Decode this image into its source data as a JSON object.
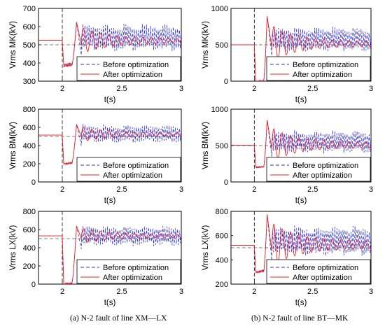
{
  "chart_data": [
    {
      "type": "line",
      "ylabel": "Vrms MK(kV)",
      "xlabel": "t(s)",
      "xlim": [
        1.8,
        3.0
      ],
      "ylim": [
        300,
        700
      ],
      "xticks": [
        "2",
        "2.5",
        "3"
      ],
      "yticks": [
        "300",
        "400",
        "500",
        "600",
        "700"
      ],
      "dashed_reference": {
        "x": 2.0,
        "y": 500
      },
      "legend": "lower-right",
      "pre_fault_kv": 525,
      "dip_kv": 385,
      "peak_kv": 625,
      "peak_t": 2.12,
      "series": [
        {
          "name": "Before optimization",
          "color": "#3333dd",
          "style": "dashed",
          "steady_min": 460,
          "steady_max": 620
        },
        {
          "name": "After optimization",
          "color": "#ee2222",
          "style": "solid",
          "steady_min": 505,
          "steady_max": 540
        }
      ]
    },
    {
      "type": "line",
      "ylabel": "Vrms MK(kV)",
      "xlabel": "t(s)",
      "xlim": [
        1.8,
        3.0
      ],
      "ylim": [
        0,
        1000
      ],
      "xticks": [
        "2",
        "2.5",
        "3"
      ],
      "yticks": [
        "0",
        "500",
        "1000"
      ],
      "dashed_reference": {
        "x": 2.0,
        "y": 500
      },
      "legend": "lower-right",
      "pre_fault_kv": 500,
      "dip_kv": 0,
      "peak_kv": 890,
      "peak_t": 2.11,
      "series": [
        {
          "name": "Before optimization",
          "color": "#3333dd",
          "style": "dashed",
          "steady_min": 390,
          "steady_max": 760
        },
        {
          "name": "After optimization",
          "color": "#ee2222",
          "style": "solid",
          "steady_min": 470,
          "steady_max": 560
        }
      ]
    },
    {
      "type": "line",
      "ylabel": "Vrms BM(kV)",
      "xlabel": "t(s)",
      "xlim": [
        1.8,
        3.0
      ],
      "ylim": [
        0,
        800
      ],
      "xticks": [
        "2",
        "2.5",
        "3"
      ],
      "yticks": [
        "0",
        "200",
        "400",
        "600",
        "800"
      ],
      "dashed_reference": {
        "x": 2.0,
        "y": 500
      },
      "legend": "lower-right",
      "pre_fault_kv": 515,
      "dip_kv": 200,
      "peak_kv": 635,
      "peak_t": 2.12,
      "series": [
        {
          "name": "Before optimization",
          "color": "#3333dd",
          "style": "dashed",
          "steady_min": 420,
          "steady_max": 640
        },
        {
          "name": "After optimization",
          "color": "#ee2222",
          "style": "solid",
          "steady_min": 500,
          "steady_max": 545
        }
      ]
    },
    {
      "type": "line",
      "ylabel": "Vrms BM(kV)",
      "xlabel": "t(s)",
      "xlim": [
        1.8,
        3.0
      ],
      "ylim": [
        0,
        1000
      ],
      "xticks": [
        "2",
        "2.5",
        "3"
      ],
      "yticks": [
        "0",
        "500",
        "1000"
      ],
      "dashed_reference": {
        "x": 2.0,
        "y": 500
      },
      "legend": "lower-right",
      "pre_fault_kv": 505,
      "dip_kv": 200,
      "peak_kv": 850,
      "peak_t": 2.11,
      "series": [
        {
          "name": "Before optimization",
          "color": "#3333dd",
          "style": "dashed",
          "steady_min": 380,
          "steady_max": 720
        },
        {
          "name": "After optimization",
          "color": "#ee2222",
          "style": "solid",
          "steady_min": 460,
          "steady_max": 560
        }
      ]
    },
    {
      "type": "line",
      "ylabel": "Vrms LX(kV)",
      "xlabel": "t(s)",
      "xlim": [
        1.8,
        3.0
      ],
      "ylim": [
        0,
        800
      ],
      "xticks": [
        "2",
        "2.5",
        "3"
      ],
      "yticks": [
        "0",
        "200",
        "400",
        "600",
        "800"
      ],
      "dashed_reference": {
        "x": 2.0,
        "y": 500
      },
      "legend": "lower-right",
      "pre_fault_kv": 530,
      "dip_kv": 0,
      "peak_kv": 640,
      "peak_t": 2.12,
      "series": [
        {
          "name": "Before optimization",
          "color": "#3333dd",
          "style": "dashed",
          "steady_min": 410,
          "steady_max": 650
        },
        {
          "name": "After optimization",
          "color": "#ee2222",
          "style": "solid",
          "steady_min": 505,
          "steady_max": 555
        }
      ]
    },
    {
      "type": "line",
      "ylabel": "Vrms LX(kV)",
      "xlabel": "t(s)",
      "xlim": [
        1.8,
        3.0
      ],
      "ylim": [
        200,
        800
      ],
      "xticks": [
        "2",
        "2.5",
        "3"
      ],
      "yticks": [
        "200",
        "400",
        "600",
        "800"
      ],
      "dashed_reference": {
        "x": 2.0,
        "y": 500
      },
      "legend": "lower-right",
      "pre_fault_kv": 520,
      "dip_kv": 300,
      "peak_kv": 775,
      "peak_t": 2.11,
      "series": [
        {
          "name": "Before optimization",
          "color": "#3333dd",
          "style": "dashed",
          "steady_min": 420,
          "steady_max": 690
        },
        {
          "name": "After optimization",
          "color": "#ee2222",
          "style": "solid",
          "steady_min": 480,
          "steady_max": 570
        }
      ]
    }
  ],
  "captions": {
    "left": "(a) N-2 fault of line XM—LX",
    "right": "(b) N-2 fault of line BT—MK"
  }
}
